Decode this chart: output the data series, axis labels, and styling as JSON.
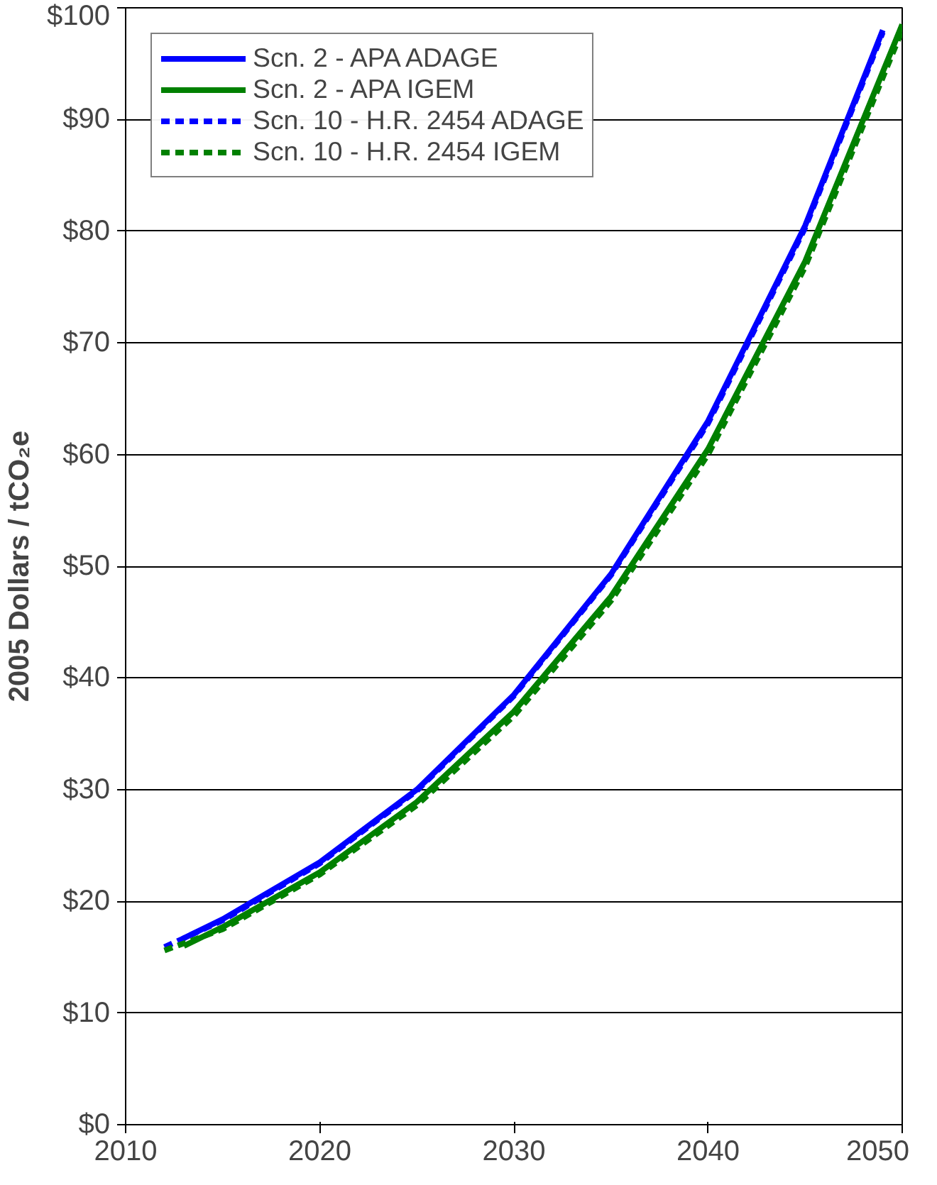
{
  "chart_data": {
    "type": "line",
    "ylabel": "2005 Dollars / tCO₂e",
    "xlim": [
      2010,
      2050
    ],
    "xticks": [
      2010,
      2020,
      2030,
      2040,
      2050
    ],
    "ylim": [
      0,
      100
    ],
    "yticks": [
      {
        "value": 0,
        "label": "$0"
      },
      {
        "value": 10,
        "label": "$10"
      },
      {
        "value": 20,
        "label": "$20"
      },
      {
        "value": 30,
        "label": "$30"
      },
      {
        "value": 40,
        "label": "$40"
      },
      {
        "value": 50,
        "label": "$50"
      },
      {
        "value": 60,
        "label": "$60"
      },
      {
        "value": 70,
        "label": "$70"
      },
      {
        "value": 80,
        "label": "$80"
      },
      {
        "value": 90,
        "label": "$90"
      },
      {
        "value": 100,
        "label": "$100"
      }
    ],
    "grid": "y",
    "legend": "top left",
    "series": [
      {
        "name": "Scn. 2 - APA ADAGE",
        "color": "#0000ff",
        "line_style": "solid",
        "x": [
          2013,
          2015,
          2020,
          2025,
          2030,
          2035,
          2040,
          2045,
          2049
        ],
        "values": [
          16.7,
          18.4,
          23.5,
          30.0,
          38.5,
          49.3,
          63.0,
          80.5,
          98.0
        ]
      },
      {
        "name": "Scn. 2 - APA IGEM",
        "color": "#008000",
        "line_style": "solid",
        "x": [
          2013,
          2015,
          2020,
          2025,
          2030,
          2035,
          2040,
          2045,
          2050
        ],
        "values": [
          16.0,
          17.7,
          22.6,
          28.9,
          37.0,
          47.3,
          60.5,
          77.3,
          98.5
        ]
      },
      {
        "name": "Scn. 10 - H.R. 2454 ADAGE",
        "color": "#0000ff",
        "line_style": "dashed",
        "x": [
          2012,
          2015,
          2020,
          2025,
          2030,
          2035,
          2040,
          2045,
          2049
        ],
        "values": [
          15.9,
          18.3,
          23.4,
          29.9,
          38.4,
          49.2,
          62.8,
          80.3,
          97.8
        ]
      },
      {
        "name": "Scn. 10 - H.R. 2454 IGEM",
        "color": "#008000",
        "line_style": "dashed",
        "x": [
          2012,
          2015,
          2020,
          2025,
          2030,
          2035,
          2040,
          2045,
          2050
        ],
        "values": [
          15.6,
          17.5,
          22.4,
          28.6,
          36.6,
          46.9,
          60.0,
          76.8,
          98.0
        ]
      }
    ]
  }
}
